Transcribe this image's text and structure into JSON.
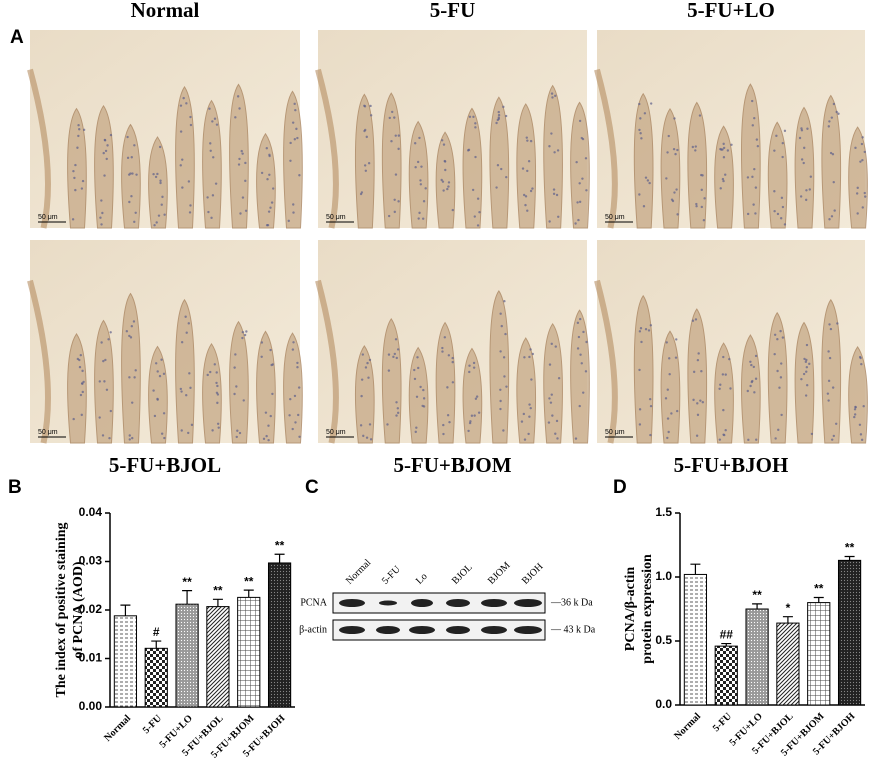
{
  "figure": {
    "panel_labels": [
      "A",
      "B",
      "C",
      "D"
    ],
    "micrographs": [
      {
        "label": "Normal",
        "scale_bar": "50 μm"
      },
      {
        "label": "5-FU",
        "scale_bar": "50 μm"
      },
      {
        "label": "5-FU+LO",
        "scale_bar": "50 μm"
      },
      {
        "label": "5-FU+BJOL",
        "scale_bar": "50 μm"
      },
      {
        "label": "5-FU+BJOM",
        "scale_bar": "50 μm"
      },
      {
        "label": "5-FU+BJOH",
        "scale_bar": "50 μm"
      }
    ],
    "blot": {
      "lanes": [
        "Normal",
        "5-FU",
        "Lo",
        "BJOL",
        "BJOM",
        "BJOH"
      ],
      "rows": [
        "PCNA",
        "β-actin"
      ],
      "markers": [
        "—36 k Da",
        "— 43 k Da"
      ]
    }
  },
  "chart_data": [
    {
      "type": "bar",
      "y_label": [
        "The index of positive staining",
        "of PCNA (AOD)"
      ],
      "categories": [
        "Normal",
        "5-FU",
        "5-FU+LO",
        "5-FU+BJOL",
        "5-FU+BJOM",
        "5-FU+BJOH"
      ],
      "values": [
        0.0188,
        0.0121,
        0.0212,
        0.0207,
        0.0226,
        0.0297
      ],
      "errors": [
        0.0022,
        0.0015,
        0.0028,
        0.0015,
        0.0015,
        0.0018
      ],
      "annotations": [
        null,
        "#",
        "**",
        "**",
        "**",
        "**"
      ],
      "ylim": [
        0,
        0.04
      ],
      "yticks": [
        {
          "value": 0,
          "label": "0.00"
        },
        0.01,
        0.02,
        0.03,
        0.04
      ]
    },
    {
      "type": "bar",
      "y_label": [
        "PCNA/β-actin",
        "protein expression"
      ],
      "categories": [
        "Normal",
        "5-FU",
        "5-FU+LO",
        "5-FU+BJOL",
        "5-FU+BJOM",
        "5-FU+BJOH"
      ],
      "values": [
        1.02,
        0.46,
        0.75,
        0.64,
        0.8,
        1.13
      ],
      "errors": [
        0.08,
        0.02,
        0.04,
        0.05,
        0.04,
        0.03
      ],
      "annotations": [
        null,
        "##",
        "**",
        "*",
        "**",
        "**"
      ],
      "ylim": [
        0,
        1.5
      ],
      "yticks": [
        {
          "value": 0,
          "label": "0.0"
        },
        {
          "value": 0.5,
          "label": "0.5"
        },
        {
          "value": 1,
          "label": "1.0"
        },
        {
          "value": 1.5,
          "label": "1.5"
        }
      ]
    }
  ]
}
